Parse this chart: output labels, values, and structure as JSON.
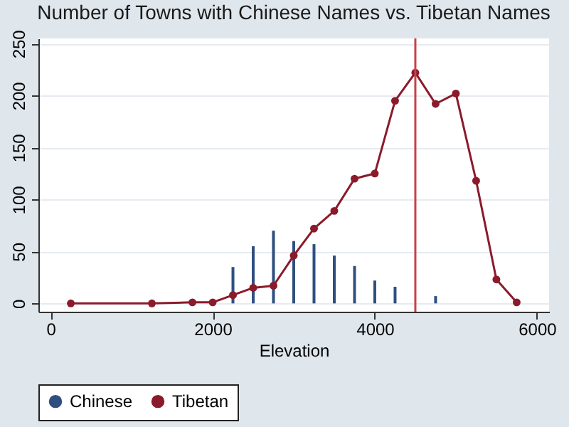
{
  "chart_data": {
    "type": "line",
    "title": "Number of Towns with Chinese Names vs. Tibetan Names",
    "xlabel": "Elevation",
    "xlim": [
      -150,
      6150
    ],
    "xticks": [
      0,
      2000,
      4000,
      6000
    ],
    "ylim": [
      -8,
      255
    ],
    "yticks": [
      0,
      50,
      100,
      150,
      200,
      250
    ],
    "grid": "y",
    "legend": "bottom",
    "marker": "circle",
    "series": [
      {
        "name": "Chinese",
        "type": "bar",
        "color": "#2f4f7f",
        "x": [
          2250,
          2500,
          2750,
          3000,
          3250,
          3500,
          3750,
          4000,
          4250,
          4750
        ],
        "values": [
          35,
          55,
          70,
          60,
          57,
          46,
          36,
          22,
          16,
          7
        ]
      },
      {
        "name": "Tibetan",
        "color": "#8b1a2b",
        "x": [
          250,
          1250,
          1750,
          2000,
          2250,
          2500,
          2750,
          3000,
          3250,
          3500,
          3750,
          4000,
          4250,
          4500,
          4750,
          5000,
          5250,
          5500,
          5750
        ],
        "values": [
          0,
          0,
          1,
          1,
          8,
          15,
          17,
          46,
          72,
          89,
          120,
          125,
          195,
          222,
          192,
          202,
          118,
          23,
          1
        ]
      }
    ],
    "ref_lines": [
      {
        "axis": "x",
        "value": 4500,
        "color": "#c8414b"
      }
    ]
  }
}
